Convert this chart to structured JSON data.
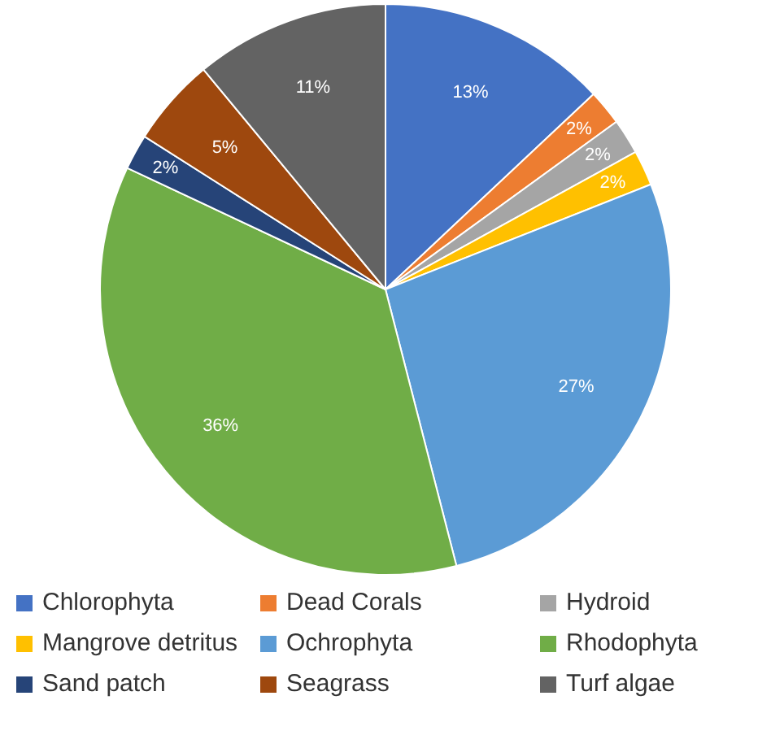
{
  "chart_data": {
    "type": "pie",
    "categories": [
      "Chlorophyta",
      "Dead Corals",
      "Hydroid",
      "Mangrove detritus",
      "Ochrophyta",
      "Rhodophyta",
      "Sand patch",
      "Seagrass",
      "Turf algae"
    ],
    "values": [
      13,
      2,
      2,
      2,
      27,
      36,
      2,
      5,
      11
    ],
    "value_labels": [
      "13%",
      "2%",
      "2%",
      "2%",
      "27%",
      "36%",
      "2%",
      "5%",
      "11%"
    ],
    "colors": [
      "#4472c4",
      "#ed7d31",
      "#a5a5a5",
      "#ffc000",
      "#5b9bd5",
      "#70ad47",
      "#264478",
      "#9e480e",
      "#636363"
    ],
    "legend": "bottom"
  }
}
